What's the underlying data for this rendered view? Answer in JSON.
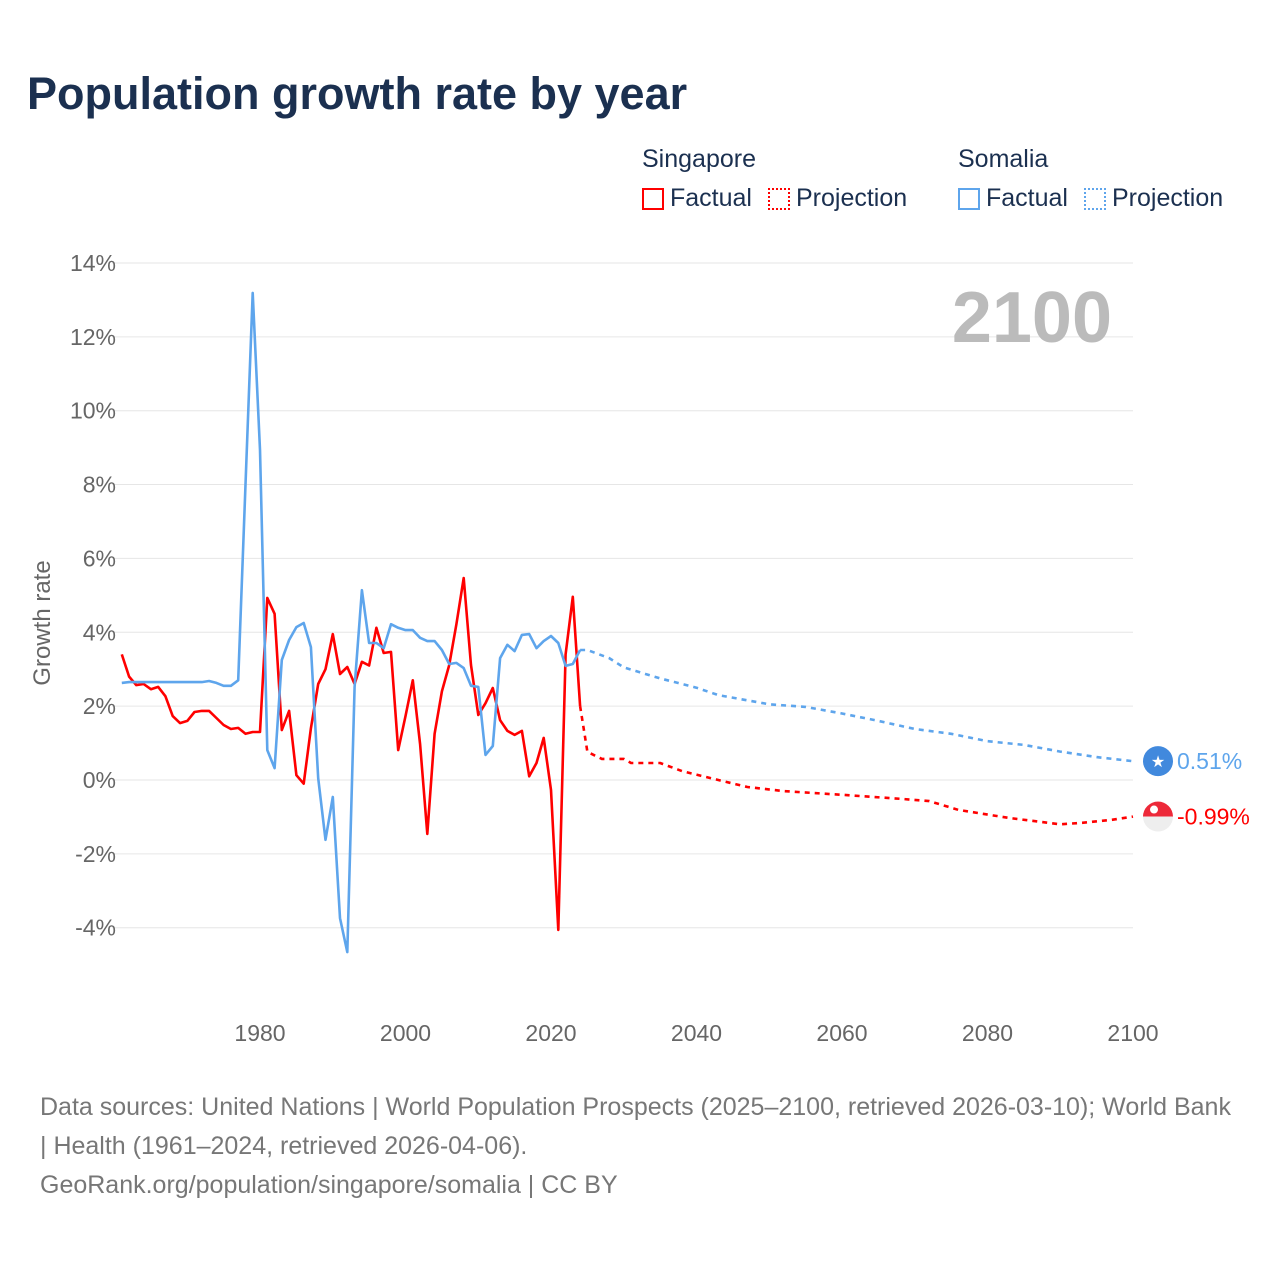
{
  "title": "Population growth rate by year",
  "legend": {
    "groups": [
      {
        "name": "Singapore",
        "factual": "Factual",
        "projection": "Projection",
        "color": "#ff0000"
      },
      {
        "name": "Somalia",
        "factual": "Factual",
        "projection": "Projection",
        "color": "#5ea5ec"
      }
    ]
  },
  "year_label": "2100",
  "end_labels": {
    "somalia": "0.51%",
    "singapore": "-0.99%"
  },
  "footer": {
    "sources": "Data sources: United Nations | World Population Prospects (2025–2100, retrieved 2026-03-10); World Bank | Health (1961–2024, retrieved 2026-04-06).",
    "credit": "GeoRank.org/population/singapore/somalia | CC BY"
  },
  "chart_data": {
    "type": "line",
    "title": "Population growth rate by year",
    "xlabel": "",
    "ylabel": "Growth rate",
    "xlim": [
      1961,
      2100
    ],
    "ylim": [
      -5,
      14
    ],
    "xticks": [
      1980,
      2000,
      2020,
      2040,
      2060,
      2080,
      2100
    ],
    "xtick_labels": [
      "1980",
      "2000",
      "2020",
      "2040",
      "2060",
      "2080",
      "2100"
    ],
    "yticks": [
      -4,
      -2,
      0,
      2,
      4,
      6,
      8,
      10,
      12,
      14
    ],
    "ytick_labels": [
      "-4%",
      "-2%",
      "0%",
      "2%",
      "4%",
      "6%",
      "8%",
      "10%",
      "12%",
      "14%"
    ],
    "grid": true,
    "legend_position": "top-right",
    "series": [
      {
        "name": "Singapore Factual",
        "color": "#ff0000",
        "style": "solid",
        "points": [
          [
            1961,
            3.4
          ],
          [
            1962,
            2.8
          ],
          [
            1963,
            2.57
          ],
          [
            1964,
            2.6
          ],
          [
            1965,
            2.46
          ],
          [
            1966,
            2.52
          ],
          [
            1967,
            2.27
          ],
          [
            1968,
            1.73
          ],
          [
            1969,
            1.54
          ],
          [
            1970,
            1.6
          ],
          [
            1971,
            1.84
          ],
          [
            1972,
            1.87
          ],
          [
            1973,
            1.87
          ],
          [
            1974,
            1.68
          ],
          [
            1975,
            1.49
          ],
          [
            1976,
            1.38
          ],
          [
            1977,
            1.41
          ],
          [
            1978,
            1.25
          ],
          [
            1979,
            1.3
          ],
          [
            1980,
            1.3
          ],
          [
            1981,
            4.93
          ],
          [
            1982,
            4.5
          ],
          [
            1983,
            1.35
          ],
          [
            1984,
            1.87
          ],
          [
            1985,
            0.13
          ],
          [
            1986,
            -0.1
          ],
          [
            1987,
            1.4
          ],
          [
            1988,
            2.6
          ],
          [
            1989,
            3.0
          ],
          [
            1990,
            3.95
          ],
          [
            1991,
            2.87
          ],
          [
            1992,
            3.06
          ],
          [
            1993,
            2.6
          ],
          [
            1994,
            3.2
          ],
          [
            1995,
            3.1
          ],
          [
            1996,
            4.12
          ],
          [
            1997,
            3.44
          ],
          [
            1998,
            3.47
          ],
          [
            1999,
            0.81
          ],
          [
            2000,
            1.73
          ],
          [
            2001,
            2.7
          ],
          [
            2002,
            0.97
          ],
          [
            2003,
            -1.46
          ],
          [
            2004,
            1.25
          ],
          [
            2005,
            2.4
          ],
          [
            2006,
            3.11
          ],
          [
            2007,
            4.22
          ],
          [
            2008,
            5.47
          ],
          [
            2009,
            3.11
          ],
          [
            2010,
            1.76
          ],
          [
            2011,
            2.08
          ],
          [
            2012,
            2.49
          ],
          [
            2013,
            1.62
          ],
          [
            2014,
            1.33
          ],
          [
            2015,
            1.22
          ],
          [
            2016,
            1.33
          ],
          [
            2017,
            0.1
          ],
          [
            2018,
            0.46
          ],
          [
            2019,
            1.14
          ],
          [
            2020,
            -0.27
          ],
          [
            2021,
            -4.06
          ],
          [
            2022,
            3.4
          ],
          [
            2023,
            4.96
          ],
          [
            2024,
            2.0
          ]
        ]
      },
      {
        "name": "Singapore Projection",
        "color": "#ff0000",
        "style": "dotted",
        "points": [
          [
            2024,
            2.0
          ],
          [
            2025,
            0.76
          ],
          [
            2027,
            0.57
          ],
          [
            2030,
            0.57
          ],
          [
            2031,
            0.46
          ],
          [
            2035,
            0.46
          ],
          [
            2038,
            0.24
          ],
          [
            2043,
            0.0
          ],
          [
            2047,
            -0.19
          ],
          [
            2052,
            -0.3
          ],
          [
            2060,
            -0.4
          ],
          [
            2068,
            -0.51
          ],
          [
            2072,
            -0.57
          ],
          [
            2076,
            -0.81
          ],
          [
            2083,
            -1.03
          ],
          [
            2090,
            -1.2
          ],
          [
            2093,
            -1.16
          ],
          [
            2097,
            -1.08
          ],
          [
            2100,
            -0.99
          ]
        ]
      },
      {
        "name": "Somalia Factual",
        "color": "#5ea5ec",
        "style": "solid",
        "points": [
          [
            1961,
            2.63
          ],
          [
            1962,
            2.65
          ],
          [
            1965,
            2.65
          ],
          [
            1970,
            2.65
          ],
          [
            1972,
            2.65
          ],
          [
            1973,
            2.68
          ],
          [
            1974,
            2.63
          ],
          [
            1975,
            2.55
          ],
          [
            1976,
            2.55
          ],
          [
            1977,
            2.7
          ],
          [
            1978,
            8.0
          ],
          [
            1979,
            13.19
          ],
          [
            1980,
            8.94
          ],
          [
            1981,
            0.81
          ],
          [
            1982,
            0.32
          ],
          [
            1983,
            3.25
          ],
          [
            1984,
            3.79
          ],
          [
            1985,
            4.14
          ],
          [
            1986,
            4.25
          ],
          [
            1987,
            3.6
          ],
          [
            1988,
            0.05
          ],
          [
            1989,
            -1.62
          ],
          [
            1990,
            -0.46
          ],
          [
            1991,
            -3.74
          ],
          [
            1992,
            -4.66
          ],
          [
            1993,
            2.52
          ],
          [
            1994,
            5.14
          ],
          [
            1995,
            3.71
          ],
          [
            1996,
            3.71
          ],
          [
            1997,
            3.57
          ],
          [
            1998,
            4.22
          ],
          [
            1999,
            4.12
          ],
          [
            2000,
            4.06
          ],
          [
            2001,
            4.06
          ],
          [
            2002,
            3.85
          ],
          [
            2003,
            3.76
          ],
          [
            2004,
            3.76
          ],
          [
            2005,
            3.52
          ],
          [
            2006,
            3.14
          ],
          [
            2007,
            3.17
          ],
          [
            2008,
            3.03
          ],
          [
            2009,
            2.55
          ],
          [
            2010,
            2.52
          ],
          [
            2011,
            0.68
          ],
          [
            2012,
            0.92
          ],
          [
            2013,
            3.3
          ],
          [
            2014,
            3.66
          ],
          [
            2015,
            3.49
          ],
          [
            2016,
            3.93
          ],
          [
            2017,
            3.95
          ],
          [
            2018,
            3.57
          ],
          [
            2019,
            3.76
          ],
          [
            2020,
            3.9
          ],
          [
            2021,
            3.71
          ],
          [
            2022,
            3.09
          ],
          [
            2023,
            3.14
          ],
          [
            2024,
            3.52
          ]
        ]
      },
      {
        "name": "Somalia Projection",
        "color": "#5ea5ec",
        "style": "dotted",
        "points": [
          [
            2024,
            3.52
          ],
          [
            2025,
            3.52
          ],
          [
            2028,
            3.3
          ],
          [
            2030,
            3.05
          ],
          [
            2035,
            2.75
          ],
          [
            2040,
            2.5
          ],
          [
            2043,
            2.3
          ],
          [
            2050,
            2.05
          ],
          [
            2055,
            1.98
          ],
          [
            2060,
            1.8
          ],
          [
            2065,
            1.6
          ],
          [
            2070,
            1.38
          ],
          [
            2075,
            1.25
          ],
          [
            2080,
            1.05
          ],
          [
            2085,
            0.95
          ],
          [
            2090,
            0.77
          ],
          [
            2095,
            0.62
          ],
          [
            2100,
            0.51
          ]
        ]
      }
    ]
  }
}
